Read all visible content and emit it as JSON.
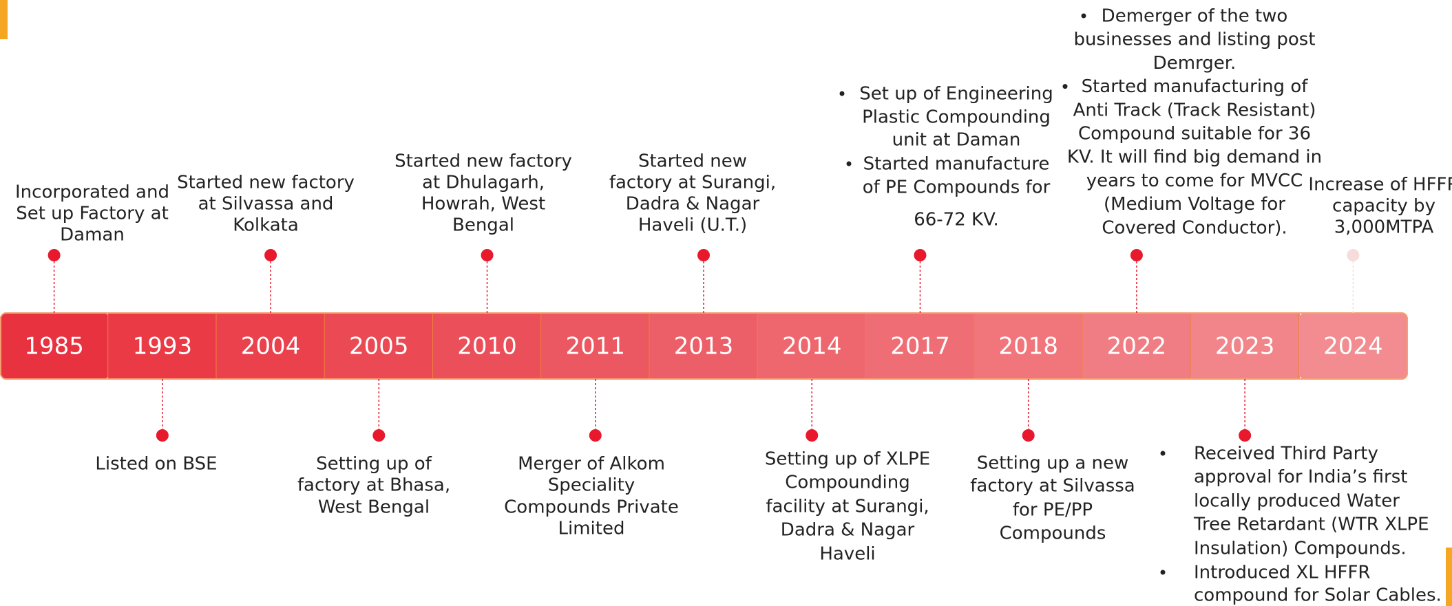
{
  "timeline": {
    "years": [
      "1985",
      "1993",
      "2004",
      "2005",
      "2010",
      "2011",
      "2013",
      "2014",
      "2017",
      "2018",
      "2022",
      "2023",
      "2024"
    ],
    "events": [
      {
        "lines": [
          "Incorporated and",
          "Set up Factory at",
          "Daman"
        ]
      },
      {
        "lines": [
          "Listed on BSE"
        ]
      },
      {
        "lines": [
          "Started new factory",
          "at Silvassa and",
          "Kolkata"
        ]
      },
      {
        "lines": [
          "Setting up of",
          "factory at Bhasa,",
          "West Bengal"
        ]
      },
      {
        "lines": [
          "Started new factory",
          "at Dhulagarh,",
          "Howrah, West",
          "Bengal"
        ]
      },
      {
        "lines": [
          "Merger of Alkom",
          "Speciality",
          "Compounds Private",
          "Limited"
        ]
      },
      {
        "lines": [
          "Started new",
          "factory at Surangi,",
          "Dadra & Nagar",
          "Haveli (U.T.)"
        ]
      },
      {
        "lines": [
          "Setting up of XLPE",
          "Compounding",
          "facility at Surangi,",
          "Dadra & Nagar",
          "Haveli"
        ]
      },
      {
        "items": [
          {
            "lines": [
              "Set up of Engineering",
              "Plastic Compounding",
              "unit at Daman"
            ]
          },
          {
            "lines": [
              "Started manufacture",
              "of PE Compounds for",
              "66-72 KV."
            ]
          }
        ]
      },
      {
        "lines": [
          "Setting up a new",
          "factory at Silvassa",
          "for PE/PP",
          "Compounds"
        ]
      },
      {
        "items": [
          {
            "lines": [
              "Demerger of the two",
              "businesses and listing post",
              "Demrger."
            ]
          },
          {
            "lines": [
              "Started manufacturing of",
              "Anti Track (Track Resistant)",
              "Compound suitable for 36",
              "KV. It will find big demand in",
              "years to come for MVCC",
              "(Medium Voltage for",
              "Covered Conductor)."
            ]
          }
        ]
      },
      {
        "items": [
          {
            "lines": [
              "Received Third Party",
              "approval for India’s first",
              "locally produced  Water",
              "Tree Retardant (WTR XLPE",
              "Insulation) Compounds."
            ]
          },
          {
            "lines": [
              "Introduced XL HFFR",
              "compound for Solar Cables."
            ]
          }
        ]
      },
      {
        "lines": [
          "Increase of HFFR",
          "capacity by",
          "3,000MTPA"
        ]
      }
    ]
  }
}
